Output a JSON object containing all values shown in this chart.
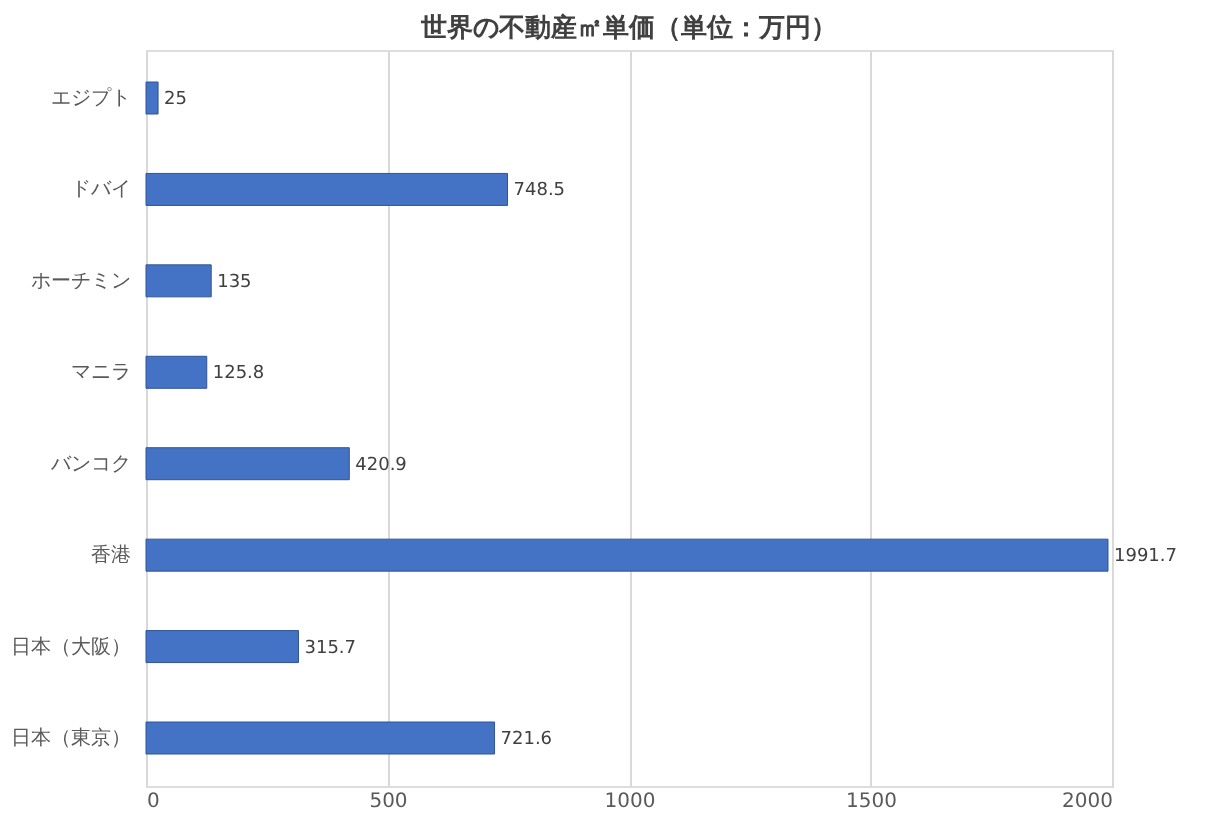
{
  "chart_data": {
    "type": "bar",
    "orientation": "horizontal",
    "title": "世界の不動産㎡単価（単位：万円）",
    "categories": [
      "エジプト",
      "ドバイ",
      "ホーチミン",
      "マニラ",
      "バンコク",
      "香港",
      "日本（大阪）",
      "日本（東京）"
    ],
    "values": [
      25,
      748.5,
      135,
      125.8,
      420.9,
      1991.7,
      315.7,
      721.6
    ],
    "color": "#4472c4",
    "xlim": [
      0,
      2000
    ],
    "xticks": [
      0,
      500,
      1000,
      1500,
      2000
    ],
    "grid": "x",
    "data_labels": true
  }
}
